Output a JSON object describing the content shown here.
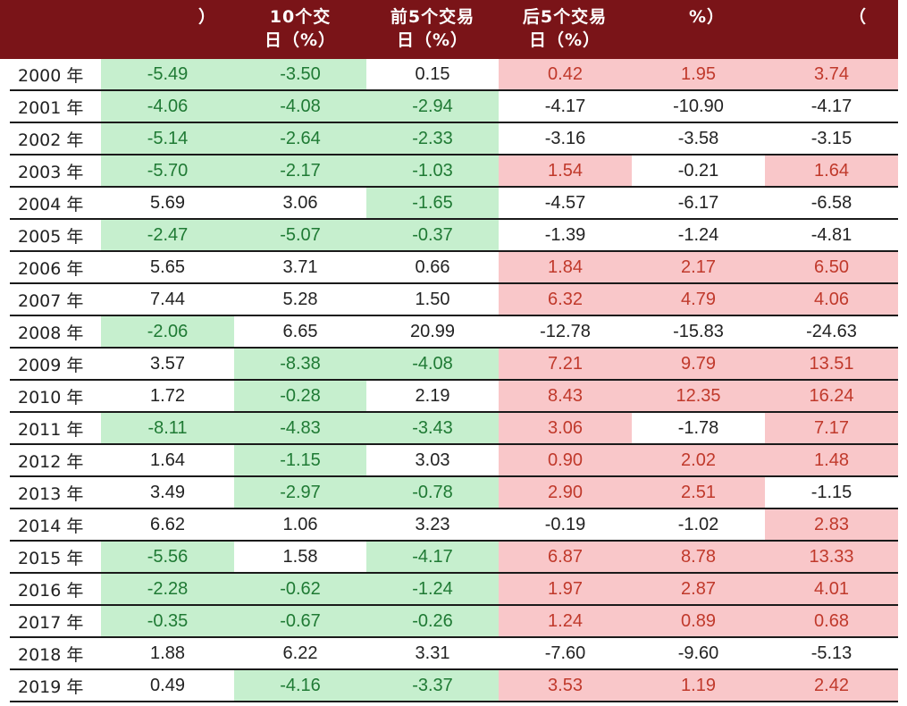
{
  "header": {
    "columns": [
      {
        "line1": "",
        "line2": "）"
      },
      {
        "line1": "10个交",
        "line2": "日（%）"
      },
      {
        "line1": "前5个交易",
        "line2": "日（%）"
      },
      {
        "line1": "后5个交易",
        "line2": "日（%）"
      },
      {
        "line1": "",
        "line2": "%）"
      },
      {
        "line1": "",
        "line2": "（"
      }
    ]
  },
  "colors": {
    "header_bg": "#7a1418",
    "green_highlight": "#c6efce",
    "green_text": "#1f7a34",
    "red_highlight": "#f9c7c9",
    "red_text": "#c0392b"
  },
  "rows": [
    {
      "year": "2000 年",
      "cells": [
        "-5.49",
        "-3.50",
        "0.15",
        "0.42",
        "1.95",
        "3.74"
      ],
      "hl": [
        "g",
        "g",
        "",
        "r",
        "r",
        "r"
      ]
    },
    {
      "year": "2001 年",
      "cells": [
        "-4.06",
        "-4.08",
        "-2.94",
        "-4.17",
        "-10.90",
        "-4.17"
      ],
      "hl": [
        "g",
        "g",
        "g",
        "",
        "",
        ""
      ]
    },
    {
      "year": "2002 年",
      "cells": [
        "-5.14",
        "-2.64",
        "-2.33",
        "-3.16",
        "-3.58",
        "-3.15"
      ],
      "hl": [
        "g",
        "g",
        "g",
        "",
        "",
        ""
      ]
    },
    {
      "year": "2003 年",
      "cells": [
        "-5.70",
        "-2.17",
        "-1.03",
        "1.54",
        "-0.21",
        "1.64"
      ],
      "hl": [
        "g",
        "g",
        "g",
        "r",
        "",
        "r"
      ]
    },
    {
      "year": "2004 年",
      "cells": [
        "5.69",
        "3.06",
        "-1.65",
        "-4.57",
        "-6.17",
        "-6.58"
      ],
      "hl": [
        "",
        "",
        "g",
        "",
        "",
        ""
      ]
    },
    {
      "year": "2005 年",
      "cells": [
        "-2.47",
        "-5.07",
        "-0.37",
        "-1.39",
        "-1.24",
        "-4.81"
      ],
      "hl": [
        "g",
        "g",
        "g",
        "",
        "",
        ""
      ]
    },
    {
      "year": "2006 年",
      "cells": [
        "5.65",
        "3.71",
        "0.66",
        "1.84",
        "2.17",
        "6.50"
      ],
      "hl": [
        "",
        "",
        "",
        "r",
        "r",
        "r"
      ]
    },
    {
      "year": "2007 年",
      "cells": [
        "7.44",
        "5.28",
        "1.50",
        "6.32",
        "4.79",
        "4.06"
      ],
      "hl": [
        "",
        "",
        "",
        "r",
        "r",
        "r"
      ]
    },
    {
      "year": "2008 年",
      "cells": [
        "-2.06",
        "6.65",
        "20.99",
        "-12.78",
        "-15.83",
        "-24.63"
      ],
      "hl": [
        "g",
        "",
        "",
        "",
        "",
        ""
      ]
    },
    {
      "year": "2009 年",
      "cells": [
        "3.57",
        "-8.38",
        "-4.08",
        "7.21",
        "9.79",
        "13.51"
      ],
      "hl": [
        "",
        "g",
        "g",
        "r",
        "r",
        "r"
      ]
    },
    {
      "year": "2010 年",
      "cells": [
        "1.72",
        "-0.28",
        "2.19",
        "8.43",
        "12.35",
        "16.24"
      ],
      "hl": [
        "",
        "g",
        "",
        "r",
        "r",
        "r"
      ]
    },
    {
      "year": "2011 年",
      "cells": [
        "-8.11",
        "-4.83",
        "-3.43",
        "3.06",
        "-1.78",
        "7.17"
      ],
      "hl": [
        "g",
        "g",
        "g",
        "r",
        "",
        "r"
      ]
    },
    {
      "year": "2012 年",
      "cells": [
        "1.64",
        "-1.15",
        "3.03",
        "0.90",
        "2.02",
        "1.48"
      ],
      "hl": [
        "",
        "g",
        "",
        "r",
        "r",
        "r"
      ]
    },
    {
      "year": "2013 年",
      "cells": [
        "3.49",
        "-2.97",
        "-0.78",
        "2.90",
        "2.51",
        "-1.15"
      ],
      "hl": [
        "",
        "g",
        "g",
        "r",
        "r",
        ""
      ]
    },
    {
      "year": "2014 年",
      "cells": [
        "6.62",
        "1.06",
        "3.23",
        "-0.19",
        "-1.02",
        "2.83"
      ],
      "hl": [
        "",
        "",
        "",
        "",
        "",
        "r"
      ]
    },
    {
      "year": "2015 年",
      "cells": [
        "-5.56",
        "1.58",
        "-4.17",
        "6.87",
        "8.78",
        "13.33"
      ],
      "hl": [
        "g",
        "",
        "g",
        "r",
        "r",
        "r"
      ]
    },
    {
      "year": "2016 年",
      "cells": [
        "-2.28",
        "-0.62",
        "-1.24",
        "1.97",
        "2.87",
        "4.01"
      ],
      "hl": [
        "g",
        "g",
        "g",
        "r",
        "r",
        "r"
      ]
    },
    {
      "year": "2017 年",
      "cells": [
        "-0.35",
        "-0.67",
        "-0.26",
        "1.24",
        "0.89",
        "0.68"
      ],
      "hl": [
        "g",
        "g",
        "g",
        "r",
        "r",
        "r"
      ]
    },
    {
      "year": "2018 年",
      "cells": [
        "1.88",
        "6.22",
        "3.31",
        "-7.60",
        "-9.60",
        "-5.13"
      ],
      "hl": [
        "",
        "",
        "",
        "",
        "",
        ""
      ]
    },
    {
      "year": "2019 年",
      "cells": [
        "0.49",
        "-4.16",
        "-3.37",
        "3.53",
        "1.19",
        "2.42"
      ],
      "hl": [
        "",
        "g",
        "g",
        "r",
        "r",
        "r"
      ]
    }
  ]
}
